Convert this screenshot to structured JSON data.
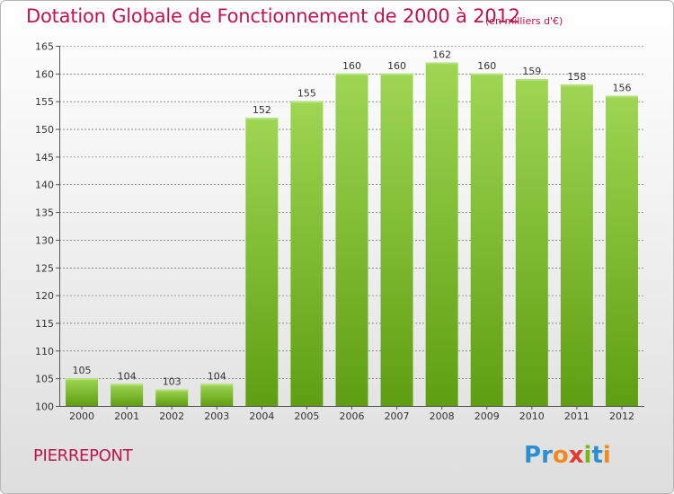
{
  "title": "Dotation Globale de Fonctionnement de 2000 à 2012",
  "subtitle": "(en milliers d'€)",
  "commune": "PIERREPONT",
  "brand": {
    "text": "Proxiti",
    "letters": [
      {
        "ch": "P",
        "color": "#2e8fd0"
      },
      {
        "ch": "r",
        "color": "#2e8fd0"
      },
      {
        "ch": "o",
        "color": "#f08a1c"
      },
      {
        "ch": "x",
        "color": "#e63a2e"
      },
      {
        "ch": "i",
        "color": "#7ab51d"
      },
      {
        "ch": "t",
        "color": "#2e8fd0"
      },
      {
        "ch": "i",
        "color": "#f08a1c"
      }
    ]
  },
  "colors": {
    "title": "#c0134f",
    "bar_top": "#9ed653",
    "bar_bottom": "#5f9e12",
    "grid": "#555555"
  },
  "chart_data": {
    "type": "bar",
    "title": "Dotation Globale de Fonctionnement de 2000 à 2012",
    "subtitle": "(en milliers d'€)",
    "categories": [
      "2000",
      "2001",
      "2002",
      "2003",
      "2004",
      "2005",
      "2006",
      "2007",
      "2008",
      "2009",
      "2010",
      "2011",
      "2012"
    ],
    "values": [
      105,
      104,
      103,
      104,
      152,
      155,
      160,
      160,
      162,
      160,
      159,
      158,
      156
    ],
    "ylim": [
      100,
      165
    ],
    "yticks": [
      100,
      105,
      110,
      115,
      120,
      125,
      130,
      135,
      140,
      145,
      150,
      155,
      160,
      165
    ],
    "grid": "dashed horizontal",
    "data_labels": true
  }
}
